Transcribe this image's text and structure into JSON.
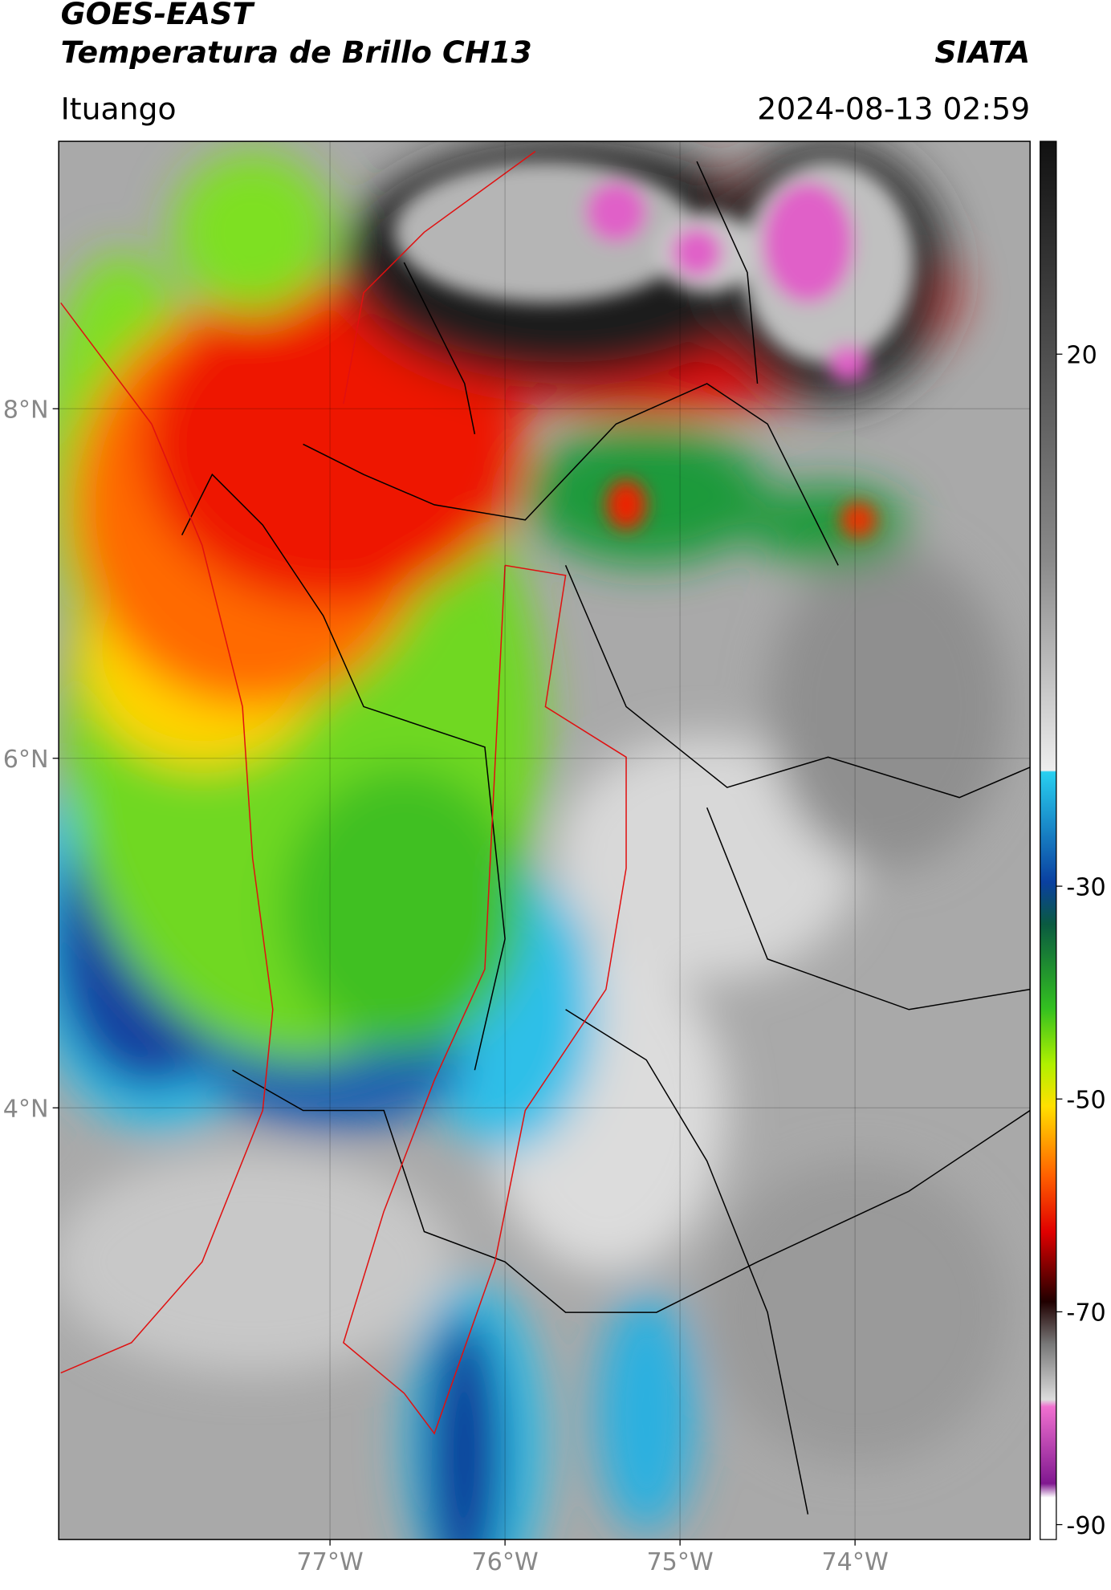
{
  "header": {
    "title": "GOES-EAST",
    "subtitle": "Temperatura de Brillo CH13",
    "brand": "SIATA",
    "location": "Ituango",
    "datetime": "2024-08-13 02:59"
  },
  "map": {
    "lon_range": [
      -78.55,
      -73.0
    ],
    "lat_range": [
      1.53,
      9.53
    ],
    "lon_ticks": [
      {
        "value": -77,
        "label": "77°W"
      },
      {
        "value": -76,
        "label": "76°W"
      },
      {
        "value": -75,
        "label": "75°W"
      },
      {
        "value": -74,
        "label": "74°W"
      }
    ],
    "lat_ticks": [
      {
        "value": 8,
        "label": "8°N"
      },
      {
        "value": 6,
        "label": "6°N"
      },
      {
        "value": 4,
        "label": "4°N"
      }
    ]
  },
  "colorbar": {
    "range": [
      -91.4,
      40
    ],
    "ticks": [
      20,
      -30,
      -50,
      -70,
      -90
    ]
  }
}
